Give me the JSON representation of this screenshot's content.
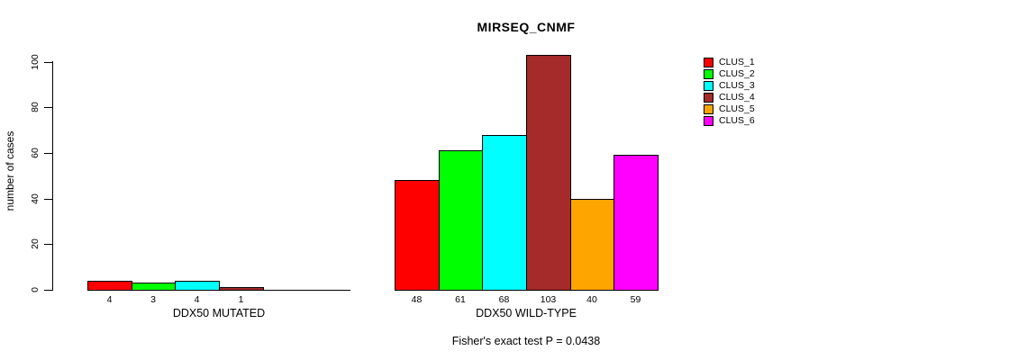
{
  "chart_data": {
    "type": "bar",
    "title": "MIRSEQ_CNMF",
    "ylabel": "number of cases",
    "xlabel": "",
    "ylim": [
      0,
      100
    ],
    "yticks": [
      "0",
      "20",
      "40",
      "60",
      "80",
      "100"
    ],
    "grid": false,
    "legend_position": "right",
    "series": [
      {
        "name": "CLUS_1",
        "color": "#FF0000"
      },
      {
        "name": "CLUS_2",
        "color": "#00FF00"
      },
      {
        "name": "CLUS_3",
        "color": "#00FFFF"
      },
      {
        "name": "CLUS_4",
        "color": "#A52A2A"
      },
      {
        "name": "CLUS_5",
        "color": "#FFA500"
      },
      {
        "name": "CLUS_6",
        "color": "#FF00FF"
      }
    ],
    "groups": [
      {
        "label": "DDX50 MUTATED",
        "values": [
          4,
          3,
          4,
          1,
          0,
          0
        ],
        "bar_labels": [
          "4",
          "3",
          "4",
          "1",
          "",
          ""
        ]
      },
      {
        "label": "DDX50 WILD-TYPE",
        "values": [
          48,
          61,
          68,
          103,
          40,
          59
        ],
        "bar_labels": [
          "48",
          "61",
          "68",
          "103",
          "40",
          "59"
        ]
      }
    ],
    "annotation": "Fisher's exact test P = 0.0438"
  },
  "colors": {
    "background": "#FFFFFF",
    "axis": "#000000",
    "text": "#000000"
  }
}
